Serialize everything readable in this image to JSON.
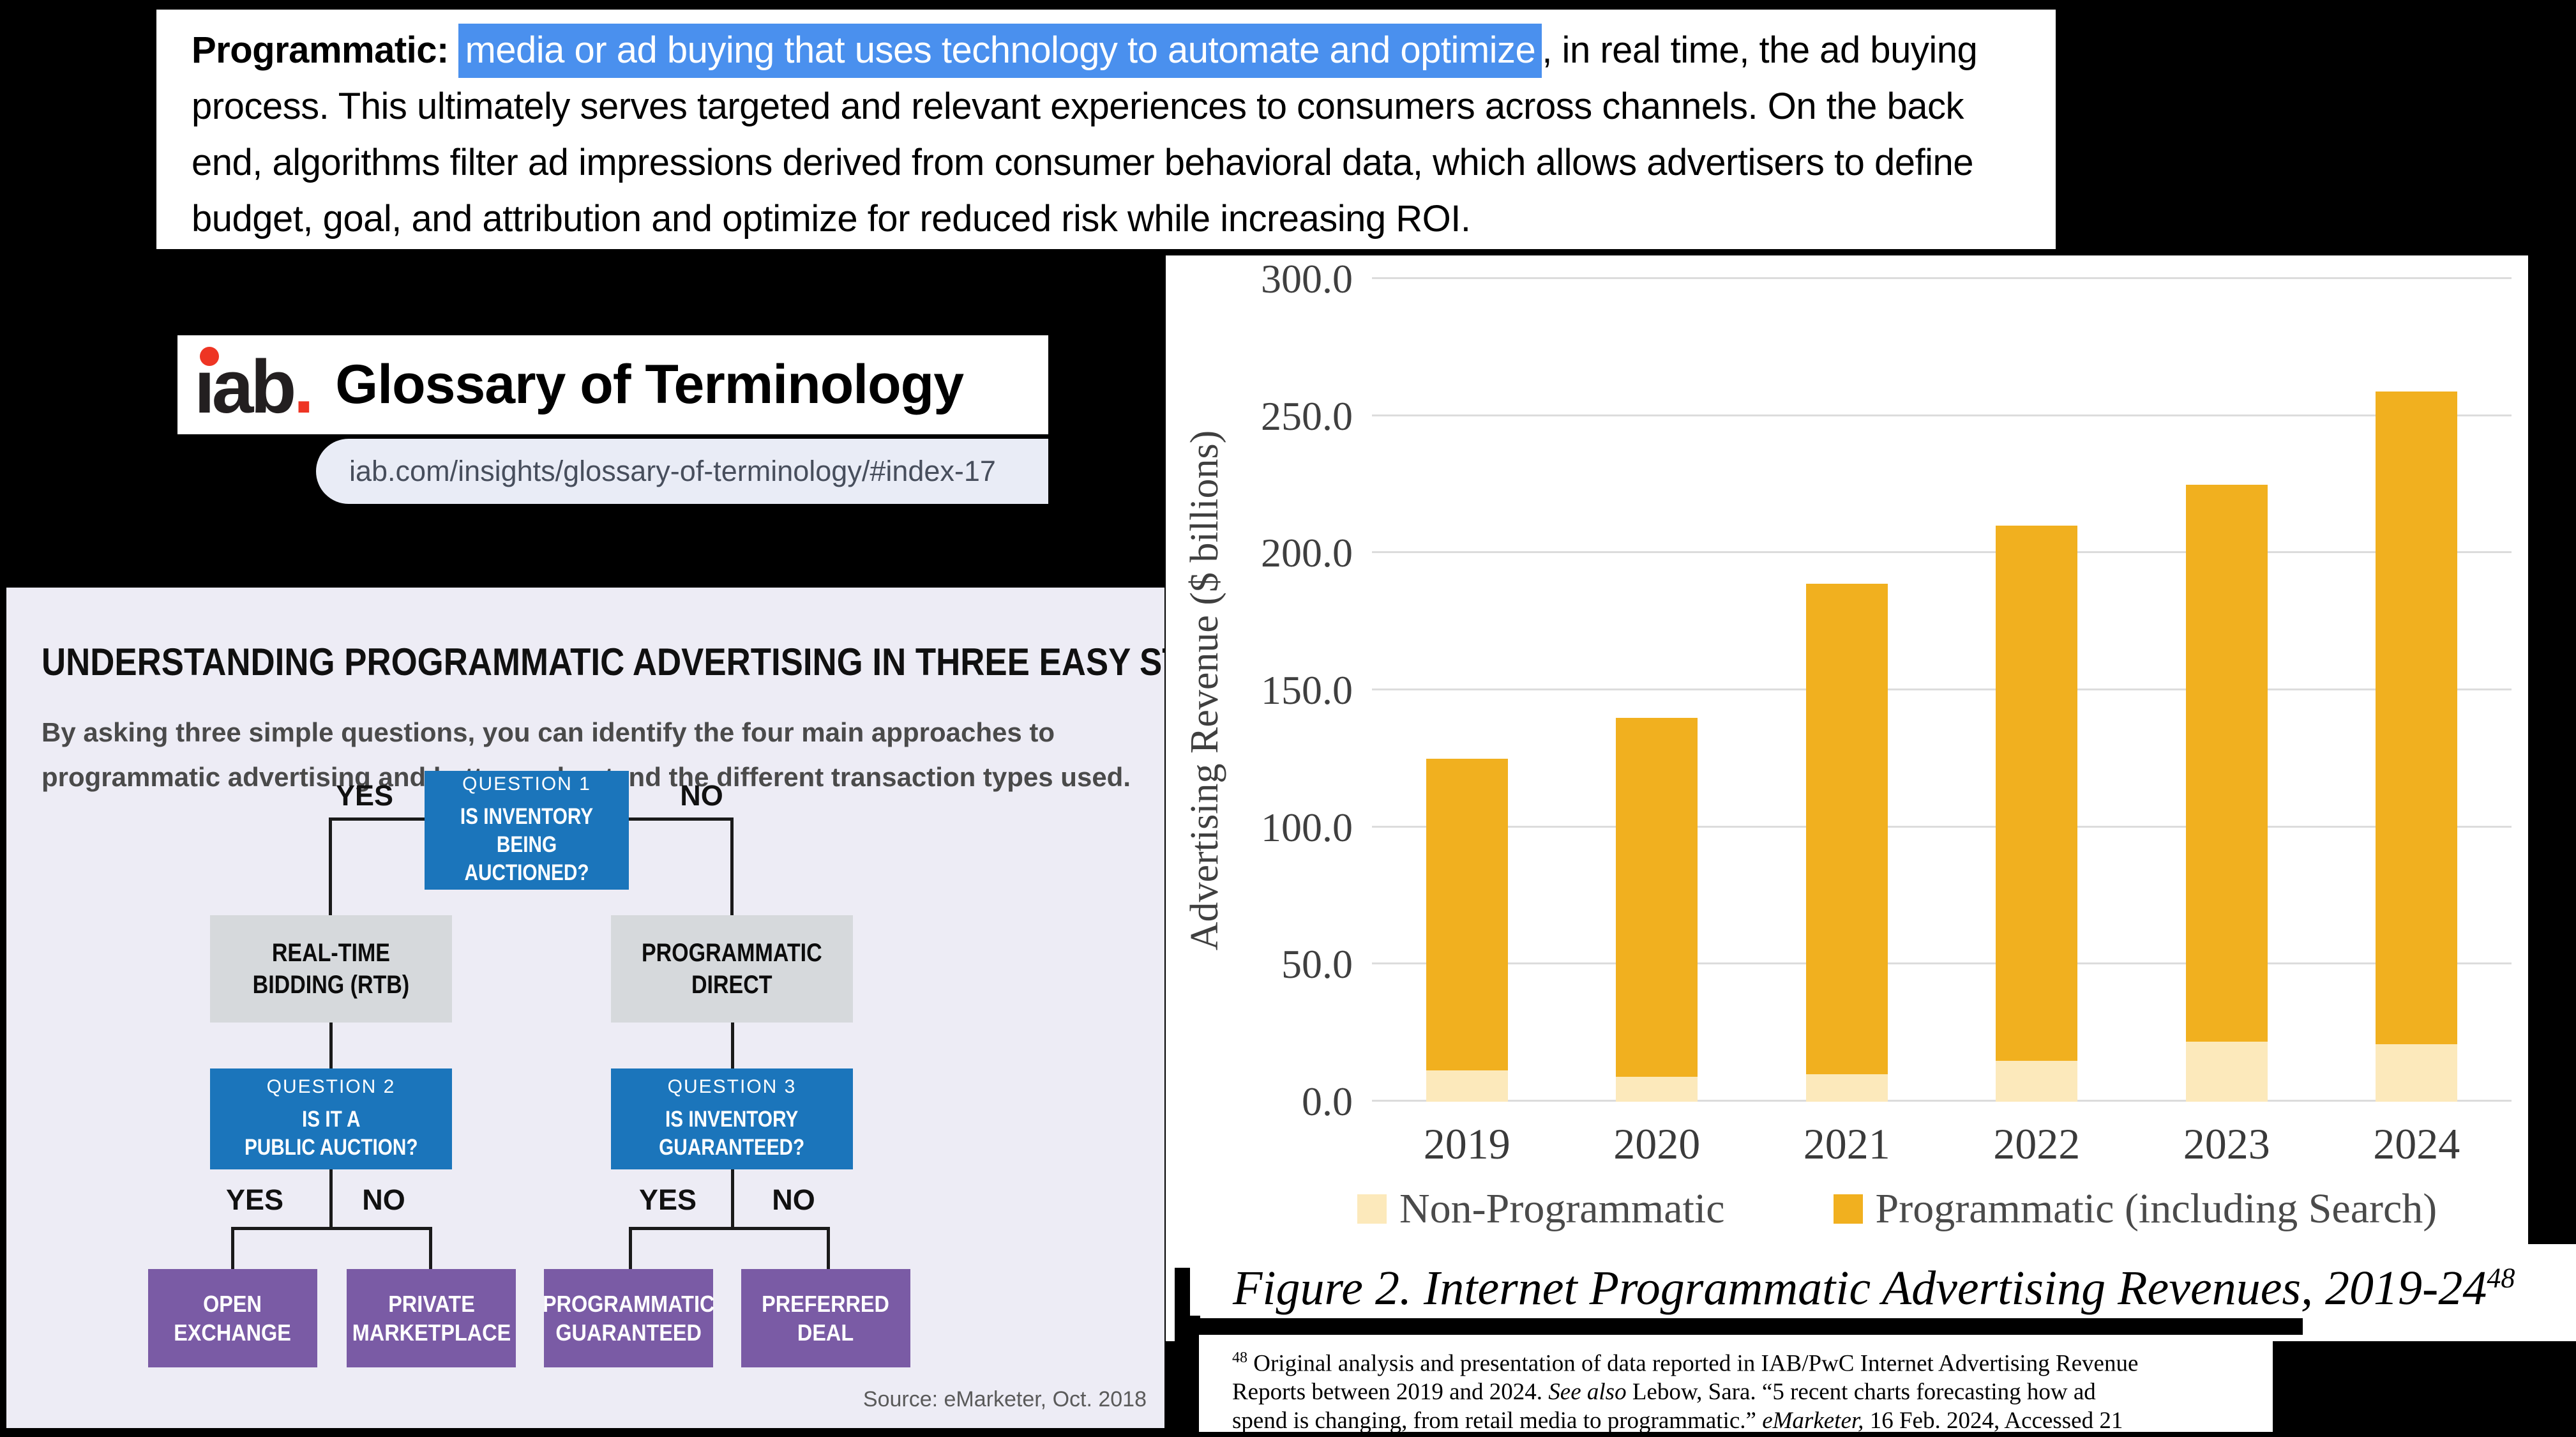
{
  "definition": {
    "term": "Programmatic:",
    "highlight": "media or ad buying that uses technology to automate and optimize",
    "line1_rest": ", in real time, the ad buying",
    "line2": "process. This ultimately serves targeted and relevant experiences to consumers across channels. On the back",
    "line3": "end, algorithms filter ad impressions derived from consumer behavioral data, which allows advertisers to define",
    "line4": "budget, goal, and attribution and optimize for reduced risk while increasing ROI.",
    "highlight_color": "#4a90ee"
  },
  "glossary": {
    "logo_text": "ıab",
    "logo_period": ".",
    "logo_red": "#ee3524",
    "title": "Glossary of Terminology",
    "url": "iab.com/insights/glossary-of-terminology/#index-17"
  },
  "flowchart": {
    "title": "UNDERSTANDING PROGRAMMATIC ADVERTISING IN THREE EASY STEPS",
    "subtitle": "By asking three simple questions, you can identify the four main approaches to\nprogrammatic advertising and better understand the different transaction types used.",
    "yes": "YES",
    "no": "NO",
    "q1_label": "QUESTION 1",
    "q1_text": "IS INVENTORY BEING\nAUCTIONED?",
    "rtb": "REAL-TIME\nBIDDING (RTB)",
    "direct": "PROGRAMMATIC\nDIRECT",
    "q2_label": "QUESTION 2",
    "q2_text": "IS IT A\nPUBLIC AUCTION?",
    "q3_label": "QUESTION 3",
    "q3_text": "IS INVENTORY\nGUARANTEED?",
    "outcomes": [
      "OPEN\nEXCHANGE",
      "PRIVATE\nMARKETPLACE",
      "PROGRAMMATIC\nGUARANTEED",
      "PREFERRED\nDEAL"
    ],
    "source": "Source: eMarketer, Oct. 2018",
    "colors": {
      "panel": "#edecf5",
      "question_blue": "#1b75bb",
      "step_gray": "#d6d9dc",
      "outcome_purple": "#7a5ba5"
    }
  },
  "chart_data": {
    "type": "bar",
    "stacked": true,
    "categories": [
      "2019",
      "2020",
      "2021",
      "2022",
      "2023",
      "2024"
    ],
    "series": [
      {
        "name": "Non-Programmatic",
        "color": "#fce9bb",
        "values": [
          11.5,
          9.0,
          10.0,
          15.0,
          22.0,
          21.0
        ]
      },
      {
        "name": "Programmatic (including Search)",
        "color": "#f1b01f",
        "values": [
          113.5,
          131.0,
          179.0,
          195.0,
          203.0,
          238.0
        ]
      }
    ],
    "totals": [
      125.0,
      140.0,
      189.0,
      210.0,
      225.0,
      259.0
    ],
    "title": "",
    "xlabel": "",
    "ylabel": "Advertising Revenue ($ billions)",
    "ylim": [
      0,
      300
    ],
    "yticks": [
      "0.0",
      "50.0",
      "100.0",
      "150.0",
      "200.0",
      "250.0",
      "300.0"
    ],
    "grid": true,
    "legend_position": "bottom"
  },
  "caption": {
    "text": "Figure 2. Internet Programmatic Advertising Revenues, 2019-24",
    "footnote_ref": "48"
  },
  "footnote": {
    "marker": "48",
    "line1": " Original analysis and presentation of data reported in IAB/PwC Internet Advertising Revenue",
    "line2_pre": "Reports between 2019 and 2024. ",
    "line2_italic": "See also",
    "line2_post": " Lebow, Sara. “5 recent charts forecasting how ad",
    "line3_pre": "spend is changing, from retail media to programmatic.” ",
    "line3_italic": "eMarketer,",
    "line3_post": " 16 Feb. 2024, Accessed 21"
  }
}
